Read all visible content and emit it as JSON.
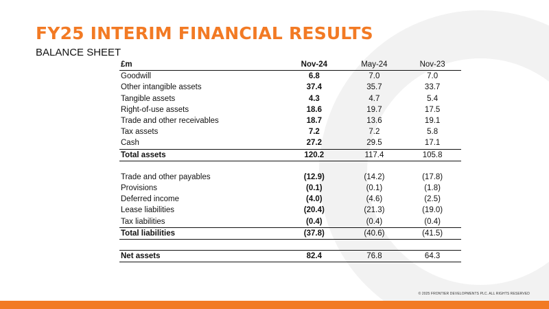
{
  "slide": {
    "title": "FY25 INTERIM FINANCIAL RESULTS",
    "subtitle": "BALANCE SHEET",
    "copyright": "© 2025 FRONTIER DEVELOPMENTS PLC. ALL RIGHTS RESERVED",
    "accent_color": "#f27a24"
  },
  "table": {
    "headers": [
      "£m",
      "Nov-24",
      "May-24",
      "Nov-23"
    ],
    "assets": [
      {
        "label": "Goodwill",
        "nov24": "6.8",
        "may24": "7.0",
        "nov23": "7.0"
      },
      {
        "label": "Other intangible assets",
        "nov24": "37.4",
        "may24": "35.7",
        "nov23": "33.7"
      },
      {
        "label": "Tangible assets",
        "nov24": "4.3",
        "may24": "4.7",
        "nov23": "5.4"
      },
      {
        "label": "Right-of-use assets",
        "nov24": "18.6",
        "may24": "19.7",
        "nov23": "17.5"
      },
      {
        "label": "Trade and other receivables",
        "nov24": "18.7",
        "may24": "13.6",
        "nov23": "19.1"
      },
      {
        "label": "Tax assets",
        "nov24": "7.2",
        "may24": "7.2",
        "nov23": "5.8"
      },
      {
        "label": "Cash",
        "nov24": "27.2",
        "may24": "29.5",
        "nov23": "17.1"
      }
    ],
    "total_assets": {
      "label": "Total assets",
      "nov24": "120.2",
      "may24": "117.4",
      "nov23": "105.8"
    },
    "liabilities": [
      {
        "label": "Trade and other payables",
        "nov24": "(12.9)",
        "may24": "(14.2)",
        "nov23": "(17.8)"
      },
      {
        "label": "Provisions",
        "nov24": "(0.1)",
        "may24": "(0.1)",
        "nov23": "(1.8)"
      },
      {
        "label": "Deferred income",
        "nov24": "(4.0)",
        "may24": "(4.6)",
        "nov23": "(2.5)"
      },
      {
        "label": "Lease liabilities",
        "nov24": "(20.4)",
        "may24": "(21.3)",
        "nov23": "(19.0)"
      },
      {
        "label": "Tax liabilities",
        "nov24": "(0.4)",
        "may24": "(0.4)",
        "nov23": "(0.4)"
      }
    ],
    "total_liabilities": {
      "label": "Total liabilities",
      "nov24": "(37.8)",
      "may24": "(40.6)",
      "nov23": "(41.5)"
    },
    "net_assets": {
      "label": "Net assets",
      "nov24": "82.4",
      "may24": "76.8",
      "nov23": "64.3"
    }
  }
}
